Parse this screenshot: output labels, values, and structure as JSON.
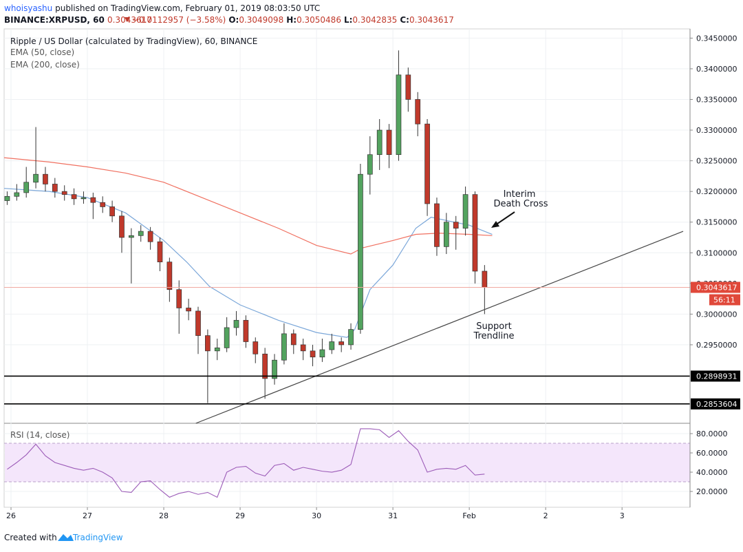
{
  "header": {
    "author": "whoisyashu",
    "published": "published on TradingView.com, February 01, 2019 08:03:50 UTC",
    "symbol": "BINANCE:XRPUSD, 60",
    "price": "0.3043617",
    "change": "−0.0112957 (−3.58%)",
    "ohlc": [
      {
        "key": "O:",
        "value": "0.3049098"
      },
      {
        "key": "H:",
        "value": "0.3050486"
      },
      {
        "key": "L:",
        "value": "0.3042835"
      },
      {
        "key": "C:",
        "value": "0.3043617"
      }
    ]
  },
  "footer": {
    "text": "Created with",
    "brand": "TradingView"
  },
  "chart_data": [
    {
      "type": "candlestick",
      "title": "Ripple / US Dollar (calculated by TradingView), 60, BINANCE",
      "up_color": "#53a35f",
      "down_color": "#c0392b",
      "x": [
        25.95,
        26.075,
        26.2,
        26.325,
        26.45,
        26.575,
        26.7,
        26.825,
        26.95,
        27.075,
        27.2,
        27.325,
        27.45,
        27.575,
        27.7,
        27.825,
        27.95,
        28.075,
        28.2,
        28.325,
        28.45,
        28.575,
        28.7,
        28.825,
        28.95,
        29.075,
        29.2,
        29.325,
        29.45,
        29.575,
        29.7,
        29.825,
        29.95,
        30.075,
        30.2,
        30.325,
        30.45,
        30.575,
        30.7,
        30.825,
        30.95,
        31.075,
        31.2,
        31.325,
        31.45,
        31.575,
        31.7,
        31.825,
        31.95,
        32.075,
        32.2
      ],
      "open": [
        0.3185,
        0.3192,
        0.3198,
        0.3215,
        0.3228,
        0.3212,
        0.32,
        0.3195,
        0.3188,
        0.319,
        0.3182,
        0.3175,
        0.316,
        0.3125,
        0.3128,
        0.3135,
        0.3118,
        0.3085,
        0.304,
        0.301,
        0.3005,
        0.2965,
        0.294,
        0.2945,
        0.2978,
        0.299,
        0.2955,
        0.2935,
        0.2895,
        0.2925,
        0.2968,
        0.295,
        0.294,
        0.293,
        0.2942,
        0.2955,
        0.295,
        0.2975,
        0.3228,
        0.326,
        0.33,
        0.326,
        0.339,
        0.335,
        0.331,
        0.318,
        0.311,
        0.315,
        0.314,
        0.3195,
        0.307
      ],
      "high": [
        0.32,
        0.3212,
        0.324,
        0.3305,
        0.324,
        0.3222,
        0.321,
        0.3205,
        0.32,
        0.3198,
        0.3192,
        0.3185,
        0.3168,
        0.314,
        0.3145,
        0.3142,
        0.3125,
        0.3092,
        0.3055,
        0.3025,
        0.3012,
        0.2975,
        0.296,
        0.2995,
        0.3005,
        0.2998,
        0.2962,
        0.2945,
        0.2935,
        0.2985,
        0.2975,
        0.296,
        0.295,
        0.296,
        0.2968,
        0.2962,
        0.2985,
        0.3245,
        0.329,
        0.3318,
        0.331,
        0.343,
        0.3402,
        0.3362,
        0.3318,
        0.319,
        0.3165,
        0.316,
        0.3208,
        0.32,
        0.308
      ],
      "low": [
        0.3178,
        0.3185,
        0.319,
        0.3205,
        0.32,
        0.319,
        0.3185,
        0.3178,
        0.318,
        0.3155,
        0.3165,
        0.315,
        0.31,
        0.305,
        0.3118,
        0.3105,
        0.307,
        0.302,
        0.2968,
        0.299,
        0.2935,
        0.2855,
        0.2925,
        0.2938,
        0.2965,
        0.2945,
        0.292,
        0.2862,
        0.2885,
        0.2918,
        0.2935,
        0.2925,
        0.2915,
        0.2922,
        0.2935,
        0.2938,
        0.2942,
        0.2968,
        0.3195,
        0.3235,
        0.3238,
        0.325,
        0.333,
        0.329,
        0.316,
        0.3095,
        0.3098,
        0.3105,
        0.3128,
        0.305,
        0.3
      ],
      "close": [
        0.3192,
        0.3198,
        0.3215,
        0.3228,
        0.3212,
        0.32,
        0.3195,
        0.3188,
        0.319,
        0.3182,
        0.3175,
        0.316,
        0.3125,
        0.3128,
        0.3135,
        0.3118,
        0.3085,
        0.304,
        0.301,
        0.3005,
        0.2965,
        0.294,
        0.2945,
        0.2978,
        0.299,
        0.2955,
        0.2935,
        0.2895,
        0.2925,
        0.2968,
        0.295,
        0.294,
        0.293,
        0.2942,
        0.2955,
        0.295,
        0.2975,
        0.3228,
        0.326,
        0.33,
        0.326,
        0.339,
        0.335,
        0.331,
        0.318,
        0.311,
        0.315,
        0.314,
        0.3195,
        0.307,
        0.3043617
      ],
      "series": [
        {
          "name": "EMA (50, close)",
          "color": "#7ba7d9",
          "x": [
            25.91,
            26.5,
            27,
            27.5,
            28,
            28.3,
            28.6,
            29,
            29.5,
            30,
            30.4,
            30.5,
            30.7,
            31,
            31.3,
            31.5,
            31.8,
            32,
            32.3
          ],
          "values": [
            0.3205,
            0.32,
            0.319,
            0.3165,
            0.312,
            0.3085,
            0.3045,
            0.3015,
            0.299,
            0.297,
            0.2962,
            0.2975,
            0.304,
            0.308,
            0.314,
            0.3158,
            0.315,
            0.3145,
            0.313
          ]
        },
        {
          "name": "EMA (200, close)",
          "color": "#f07060",
          "x": [
            25.91,
            26.5,
            27,
            27.5,
            28,
            28.5,
            29,
            29.5,
            30,
            30.45,
            30.6,
            31,
            31.3,
            31.6,
            32,
            32.3
          ],
          "values": [
            0.3255,
            0.3248,
            0.324,
            0.323,
            0.3215,
            0.319,
            0.3165,
            0.314,
            0.3112,
            0.3098,
            0.3108,
            0.312,
            0.313,
            0.3132,
            0.313,
            0.3128
          ]
        }
      ],
      "xlim": [
        25.91,
        34.89
      ],
      "ylim": [
        0.2822,
        0.3465
      ],
      "yticks": [
        {
          "value": 0.295,
          "label": "0.2950000"
        },
        {
          "value": 0.3,
          "label": "0.3000000"
        },
        {
          "value": 0.305,
          "label": "0.3050000"
        },
        {
          "value": 0.31,
          "label": "0.3100000"
        },
        {
          "value": 0.315,
          "label": "0.3150000"
        },
        {
          "value": 0.32,
          "label": "0.3200000"
        },
        {
          "value": 0.325,
          "label": "0.3250000"
        },
        {
          "value": 0.33,
          "label": "0.3300000"
        },
        {
          "value": 0.335,
          "label": "0.3350000"
        },
        {
          "value": 0.34,
          "label": "0.3400000"
        },
        {
          "value": 0.345,
          "label": "0.3450000"
        }
      ],
      "grid": true,
      "hlines": [
        {
          "value": 0.2898931
        },
        {
          "value": 0.2853604
        }
      ],
      "last_price": 0.3043617,
      "countdown": "56:11",
      "trendline": {
        "x": [
          28.42,
          34.8
        ],
        "y": [
          0.2822,
          0.3135
        ]
      },
      "annotations": [
        {
          "lines": [
            "Interim",
            "Death Cross"
          ]
        },
        {
          "lines": [
            "Support",
            "Trendline"
          ]
        }
      ]
    },
    {
      "type": "line",
      "title": "RSI (14, close)",
      "color": "#9c5cb8",
      "x": [
        25.95,
        26.075,
        26.2,
        26.325,
        26.45,
        26.575,
        26.7,
        26.825,
        26.95,
        27.075,
        27.2,
        27.325,
        27.45,
        27.575,
        27.7,
        27.825,
        27.95,
        28.075,
        28.2,
        28.325,
        28.45,
        28.575,
        28.7,
        28.825,
        28.95,
        29.075,
        29.2,
        29.325,
        29.45,
        29.575,
        29.7,
        29.825,
        29.95,
        30.075,
        30.2,
        30.325,
        30.45,
        30.575,
        30.7,
        30.825,
        30.95,
        31.075,
        31.2,
        31.325,
        31.45,
        31.575,
        31.7,
        31.825,
        31.95,
        32.075,
        32.2
      ],
      "values": [
        43,
        50,
        58,
        69,
        57,
        50,
        47,
        44,
        42,
        44,
        40,
        34,
        20,
        19,
        30,
        31,
        22,
        14,
        18,
        20,
        17,
        19,
        14,
        40,
        45,
        46,
        39,
        36,
        47,
        49,
        42,
        45,
        43,
        41,
        40,
        42,
        48,
        85,
        85,
        84,
        76,
        83,
        72,
        63,
        40,
        43,
        44,
        43,
        47,
        37,
        38
      ],
      "band": [
        30,
        70
      ],
      "xlim": [
        25.91,
        34.89
      ],
      "ylim": [
        3.6,
        90.7
      ],
      "yticks": [
        {
          "value": 20,
          "label": "20.0000"
        },
        {
          "value": 40,
          "label": "40.0000"
        },
        {
          "value": 60,
          "label": "60.0000"
        },
        {
          "value": 80,
          "label": "80.0000"
        }
      ],
      "xticks": [
        26,
        27,
        28,
        29,
        30,
        31,
        {
          "value": 32,
          "label": "Feb"
        },
        {
          "value": 33,
          "label": "2"
        },
        {
          "value": 34,
          "label": "3"
        }
      ]
    }
  ]
}
